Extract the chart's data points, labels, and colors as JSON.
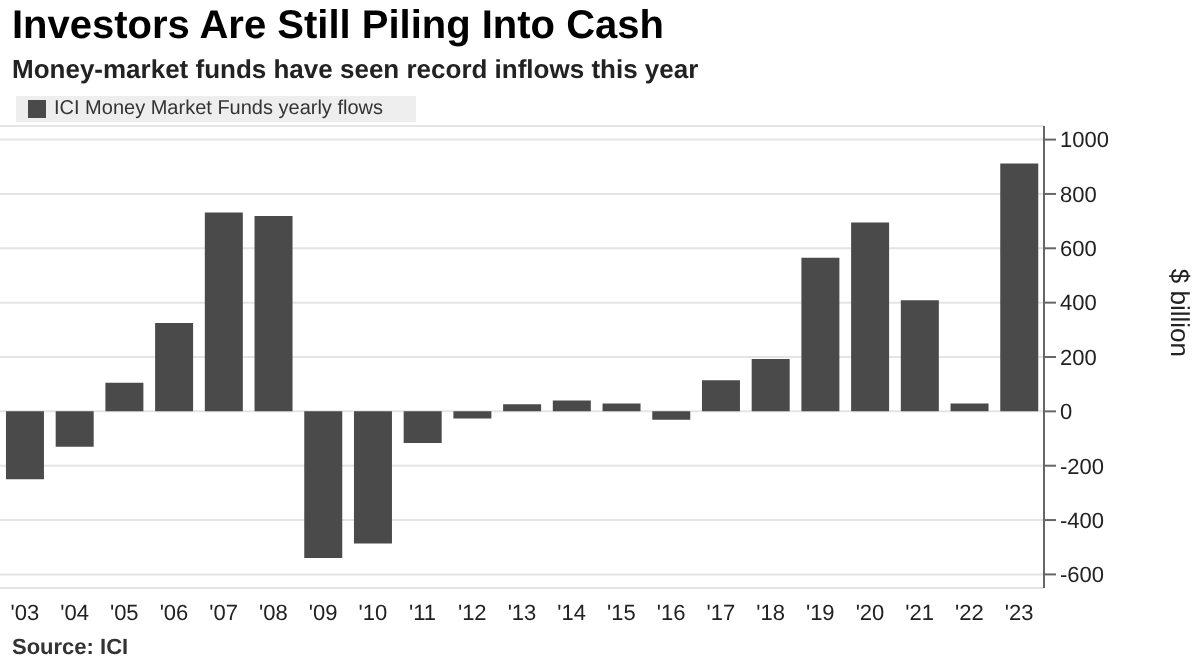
{
  "chart_data": {
    "type": "bar",
    "title": "Investors Are Still Piling Into Cash",
    "subtitle": "Money-market funds have seen record inflows this year",
    "ylabel": "$ billion",
    "categories": [
      "'03",
      "'04",
      "'05",
      "'06",
      "'07",
      "'08",
      "'09",
      "'10",
      "'11",
      "'12",
      "'13",
      "'14",
      "'15",
      "'16",
      "'17",
      "'18",
      "'19",
      "'20",
      "'21",
      "'22",
      "'23"
    ],
    "series": [
      {
        "name": "ICI Money Market Funds yearly flows",
        "color": "#4a4a4a",
        "values": [
          -250,
          -130,
          105,
          325,
          732,
          719,
          -540,
          -486,
          -116,
          -26,
          26,
          40,
          29,
          -31,
          114,
          193,
          565,
          695,
          409,
          29,
          912
        ]
      }
    ],
    "ylim": [
      -650,
      1050
    ],
    "yticks": [
      -600,
      -400,
      -200,
      0,
      200,
      400,
      600,
      800,
      1000
    ],
    "grid": "y",
    "legend": "top left",
    "annotations": [
      "Source: ICI"
    ]
  }
}
